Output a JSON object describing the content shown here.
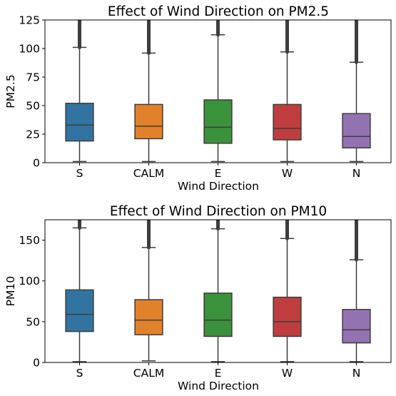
{
  "chart_data": [
    {
      "type": "box",
      "title": "Effect of Wind Direction on PM2.5",
      "xlabel": "Wind Direction",
      "ylabel": "PM2.5",
      "ylim": [
        0,
        125
      ],
      "yticks": [
        0,
        25,
        50,
        75,
        100,
        125
      ],
      "yticklabels": [
        "0",
        "25",
        "50",
        "75",
        "100",
        "125"
      ],
      "categories": [
        "S",
        "CALM",
        "E",
        "W",
        "N"
      ],
      "colors": [
        "#3274a1",
        "#e1812c",
        "#3a923a",
        "#c03d3e",
        "#9372b2"
      ],
      "boxes": [
        {
          "category": "S",
          "whisker_low": 1,
          "q1": 19,
          "median": 33,
          "q3": 52,
          "whisker_high": 101,
          "outliers_from": 101
        },
        {
          "category": "CALM",
          "whisker_low": 1,
          "q1": 21,
          "median": 32,
          "q3": 51,
          "whisker_high": 96,
          "outliers_from": 96
        },
        {
          "category": "E",
          "whisker_low": 1,
          "q1": 17,
          "median": 31,
          "q3": 55,
          "whisker_high": 112,
          "outliers_from": 112
        },
        {
          "category": "W",
          "whisker_low": 1,
          "q1": 20,
          "median": 30,
          "q3": 51,
          "whisker_high": 97,
          "outliers_from": 97
        },
        {
          "category": "N",
          "whisker_low": 1,
          "q1": 13,
          "median": 23,
          "q3": 43,
          "whisker_high": 88,
          "outliers_from": 88
        }
      ]
    },
    {
      "type": "box",
      "title": "Effect of Wind Direction on PM10",
      "xlabel": "Wind Direction",
      "ylabel": "PM10",
      "ylim": [
        0,
        175
      ],
      "yticks": [
        0,
        50,
        100,
        150
      ],
      "yticklabels": [
        "0",
        "50",
        "100",
        "150"
      ],
      "categories": [
        "S",
        "CALM",
        "E",
        "W",
        "N"
      ],
      "colors": [
        "#3274a1",
        "#e1812c",
        "#3a923a",
        "#c03d3e",
        "#9372b2"
      ],
      "boxes": [
        {
          "category": "S",
          "whisker_low": 1,
          "q1": 38,
          "median": 59,
          "q3": 89,
          "whisker_high": 165,
          "outliers_from": 165
        },
        {
          "category": "CALM",
          "whisker_low": 2,
          "q1": 34,
          "median": 52,
          "q3": 77,
          "whisker_high": 141,
          "outliers_from": 141
        },
        {
          "category": "E",
          "whisker_low": 1,
          "q1": 32,
          "median": 52,
          "q3": 85,
          "whisker_high": 164,
          "outliers_from": 164
        },
        {
          "category": "W",
          "whisker_low": 1,
          "q1": 32,
          "median": 50,
          "q3": 80,
          "whisker_high": 152,
          "outliers_from": 152
        },
        {
          "category": "N",
          "whisker_low": 1,
          "q1": 24,
          "median": 40,
          "q3": 65,
          "whisker_high": 126,
          "outliers_from": 126
        }
      ]
    }
  ]
}
